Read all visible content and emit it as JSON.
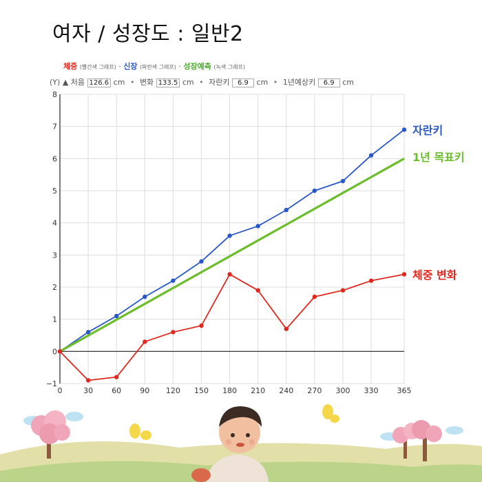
{
  "title": "여자 / 성장도 : 일반2",
  "legend": {
    "weight": "체중",
    "weight_note": "(빨간색 그래프)",
    "height": "신장",
    "height_note": "(파란색 그래프)",
    "growth": "성장예측",
    "growth_note": "(녹색 그래프)",
    "dot": "·"
  },
  "controls": {
    "y_label": "(Y)",
    "start_label": "처음",
    "start_value": "126.6",
    "start_unit": "cm",
    "change_label": "변화",
    "change_value": "133.5",
    "change_unit": "cm",
    "grow_label": "자란키",
    "grow_value": "6.9",
    "grow_unit": "cm",
    "predict_label": "1년예상키",
    "predict_value": "6.9",
    "predict_unit": "cm"
  },
  "colors": {
    "red": "#e0281e",
    "blue": "#2a57c7",
    "green": "#6cbd2c",
    "grid": "#dddddd"
  },
  "chart_data": {
    "type": "line",
    "x": [
      0,
      30,
      60,
      90,
      120,
      150,
      180,
      210,
      240,
      270,
      300,
      330,
      365
    ],
    "ylim": [
      -1,
      8
    ],
    "xlim": [
      0,
      365
    ],
    "yticks": [
      "8",
      "7",
      "6",
      "5",
      "4",
      "3",
      "2",
      "1",
      "0",
      "−1"
    ],
    "ytick_values": [
      8,
      7,
      6,
      5,
      4,
      3,
      2,
      1,
      0,
      -1
    ],
    "xticks": [
      "0",
      "30",
      "60",
      "90",
      "120",
      "150",
      "180",
      "210",
      "240",
      "270",
      "300",
      "330",
      "365"
    ],
    "grid": true,
    "series": [
      {
        "name": "자란키",
        "color": "#2a57c7",
        "markers": true,
        "values": [
          0,
          0.6,
          1.1,
          1.7,
          2.2,
          2.8,
          3.6,
          3.9,
          4.4,
          5.0,
          5.3,
          6.1,
          6.9
        ]
      },
      {
        "name": "1년 목표키",
        "color": "#6cbd2c",
        "markers": false,
        "x": [
          0,
          365
        ],
        "values": [
          0,
          6.0
        ]
      },
      {
        "name": "체중 변화",
        "color": "#e0281e",
        "markers": true,
        "values": [
          0,
          -0.9,
          -0.8,
          0.3,
          0.6,
          0.8,
          2.4,
          1.9,
          0.7,
          1.7,
          1.9,
          2.2,
          2.4
        ]
      }
    ]
  }
}
